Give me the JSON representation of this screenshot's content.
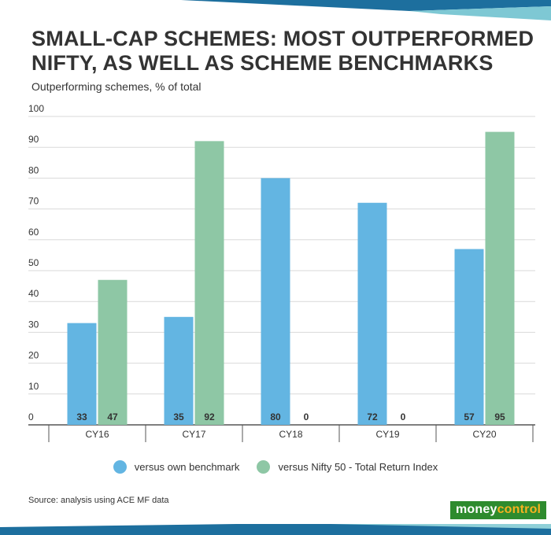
{
  "title_line1": "SMALL-CAP SCHEMES: MOST OUTPERFORMED",
  "title_line2": "NIFTY, AS WELL AS SCHEME BENCHMARKS",
  "subtitle": "Outperforming schemes, % of total",
  "source": "Source: analysis using ACE MF data",
  "brand": {
    "part1": "money",
    "part2": "control"
  },
  "colors": {
    "series1": "#63b5e2",
    "series2": "#8ec7a5",
    "grid": "#d9d9d9",
    "text": "#333333",
    "top_bar_dark": "#1d6f9e",
    "top_bar_light": "#7ec8d4",
    "bottom_bar_dark": "#1d6f9e",
    "bottom_bar_light": "#8fd0d8"
  },
  "chart_data": {
    "type": "bar",
    "categories": [
      "CY16",
      "CY17",
      "CY18",
      "CY19",
      "CY20"
    ],
    "series": [
      {
        "name": "versus own benchmark",
        "values": [
          33,
          35,
          80,
          72,
          57
        ],
        "labels": [
          "33",
          "35",
          "80",
          "72",
          "57"
        ]
      },
      {
        "name": "versus Nifty 50 - Total Return Index",
        "values": [
          47,
          92,
          0,
          0,
          95
        ],
        "labels": [
          "47",
          "92",
          "0",
          "0",
          "95"
        ]
      }
    ],
    "ylim": [
      0,
      100
    ],
    "yticks": [
      "0",
      "10",
      "20",
      "30",
      "40",
      "50",
      "60",
      "70",
      "80",
      "90",
      "100"
    ],
    "grid": true,
    "legend_position": "bottom-center"
  }
}
